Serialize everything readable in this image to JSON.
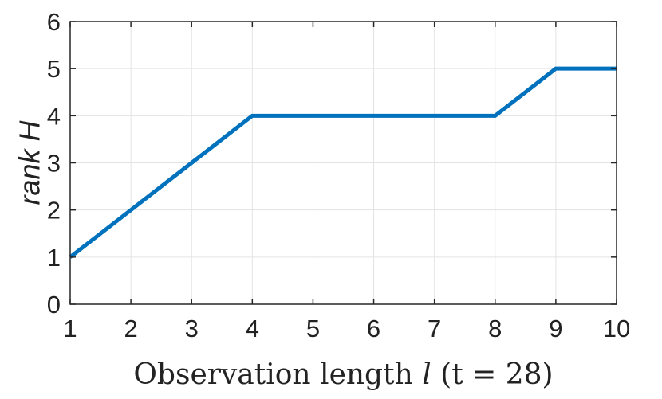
{
  "chart_data": {
    "type": "line",
    "title": "",
    "xlabel": "Observation length l (t = 28)",
    "xlabel_parts": {
      "before": "Observation length ",
      "var": "l",
      "paren": " (t = 28)"
    },
    "ylabel": "rank H",
    "xlim": [
      1,
      10
    ],
    "ylim": [
      0,
      6
    ],
    "xticks": [
      1,
      2,
      3,
      4,
      5,
      6,
      7,
      8,
      9,
      10
    ],
    "yticks": [
      0,
      1,
      2,
      3,
      4,
      5,
      6
    ],
    "grid": true,
    "legend": "none",
    "series": [
      {
        "x": [
          1,
          2,
          3,
          4,
          5,
          6,
          7,
          8,
          9,
          10
        ],
        "y": [
          1,
          2,
          3,
          4,
          4,
          4,
          4,
          4,
          5,
          5
        ],
        "color": "#0072BD"
      }
    ]
  }
}
